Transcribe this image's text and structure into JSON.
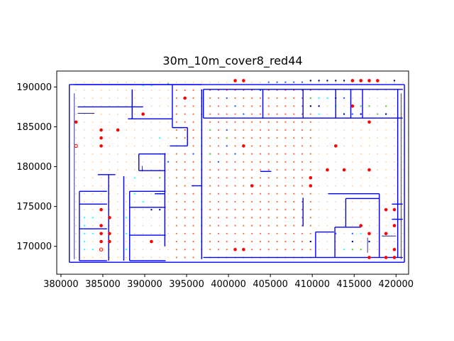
{
  "chart_data": {
    "type": "scatter",
    "title": "30m_10m_cover8_red44",
    "xlabel": "",
    "ylabel": "",
    "xlim": [
      379500,
      421500
    ],
    "ylim": [
      166500,
      192000
    ],
    "grid": false,
    "legend": "none",
    "x_ticks": [
      380000,
      385000,
      390000,
      395000,
      400000,
      405000,
      410000,
      415000,
      420000
    ],
    "y_ticks": [
      170000,
      175000,
      180000,
      185000,
      190000
    ],
    "x_tick_labels": [
      "380000",
      "385000",
      "390000",
      "395000",
      "400000",
      "405000",
      "410000",
      "415000",
      "420000"
    ],
    "y_tick_labels": [
      "170000",
      "175000",
      "180000",
      "185000",
      "190000"
    ],
    "colors": {
      "walls": "#0000ff",
      "outline": "#000080",
      "red": "#ff0000",
      "orange": "#ff6a3c",
      "peach": "#ffcc99",
      "cyan": "#33ffff",
      "blue": "#3366ff",
      "green": "#66cc33",
      "navy": "#000080"
    },
    "red_points": [
      [
        381800,
        185600
      ],
      [
        384800,
        184600
      ],
      [
        386800,
        184600
      ],
      [
        384800,
        183600
      ],
      [
        384800,
        182600
      ],
      [
        389800,
        186600
      ],
      [
        394800,
        188600
      ],
      [
        400800,
        190800
      ],
      [
        401800,
        190800
      ],
      [
        401800,
        182600
      ],
      [
        402800,
        177600
      ],
      [
        409800,
        178600
      ],
      [
        409800,
        177600
      ],
      [
        411800,
        179600
      ],
      [
        412800,
        182600
      ],
      [
        413800,
        179600
      ],
      [
        414800,
        190800
      ],
      [
        415800,
        190800
      ],
      [
        416800,
        190800
      ],
      [
        417800,
        190800
      ],
      [
        416800,
        179600
      ],
      [
        414800,
        187600
      ],
      [
        416800,
        185600
      ],
      [
        415800,
        172600
      ],
      [
        416800,
        171600
      ],
      [
        418800,
        174600
      ],
      [
        419800,
        174600
      ],
      [
        419800,
        172600
      ],
      [
        418800,
        171600
      ],
      [
        419800,
        169600
      ],
      [
        418800,
        168600
      ],
      [
        419800,
        168600
      ],
      [
        416800,
        168600
      ],
      [
        384800,
        174600
      ],
      [
        385800,
        173600
      ],
      [
        384800,
        172600
      ],
      [
        384800,
        171600
      ],
      [
        385800,
        171600
      ],
      [
        384800,
        170600
      ],
      [
        385800,
        170600
      ],
      [
        390800,
        170600
      ],
      [
        400800,
        169600
      ],
      [
        401800,
        169600
      ]
    ],
    "hollow_points": [
      [
        381800,
        182600
      ],
      [
        384800,
        169600
      ]
    ],
    "navy_points": [
      [
        409800,
        190800
      ],
      [
        410800,
        190800
      ],
      [
        411800,
        190800
      ],
      [
        412800,
        190800
      ],
      [
        413800,
        190800
      ],
      [
        419800,
        190800
      ],
      [
        409800,
        187600
      ],
      [
        410800,
        187600
      ],
      [
        412800,
        188600
      ],
      [
        413800,
        186600
      ],
      [
        415800,
        186600
      ],
      [
        418800,
        186600
      ],
      [
        390800,
        174600
      ],
      [
        391800,
        174600
      ],
      [
        409800,
        170600
      ],
      [
        414800,
        170600
      ],
      [
        416800,
        170600
      ]
    ],
    "cyan_points": [
      [
        389800,
        190200
      ],
      [
        390800,
        190200
      ],
      [
        410800,
        188600
      ],
      [
        411800,
        188600
      ],
      [
        412800,
        187600
      ],
      [
        410800,
        186600
      ],
      [
        391800,
        183600
      ],
      [
        391800,
        181600
      ],
      [
        388800,
        178600
      ],
      [
        388800,
        176600
      ],
      [
        389800,
        175600
      ],
      [
        391800,
        176600
      ],
      [
        382800,
        173600
      ],
      [
        382800,
        172600
      ],
      [
        382800,
        171600
      ],
      [
        382800,
        170600
      ],
      [
        382800,
        169600
      ],
      [
        383800,
        173600
      ],
      [
        383800,
        171600
      ],
      [
        383800,
        169600
      ],
      [
        387800,
        173600
      ],
      [
        387800,
        171600
      ],
      [
        387800,
        169600
      ],
      [
        413800,
        169600
      ],
      [
        415800,
        171600
      ]
    ],
    "blue_points": [
      [
        399800,
        188600
      ],
      [
        400800,
        187600
      ],
      [
        403800,
        189600
      ],
      [
        404800,
        190600
      ],
      [
        405800,
        190600
      ],
      [
        406800,
        190600
      ],
      [
        407800,
        190600
      ],
      [
        408800,
        190600
      ],
      [
        401800,
        186600
      ],
      [
        399800,
        184600
      ],
      [
        399800,
        182600
      ],
      [
        400800,
        181600
      ],
      [
        398800,
        180600
      ],
      [
        392800,
        180600
      ],
      [
        395800,
        181600
      ],
      [
        413800,
        188600
      ],
      [
        414800,
        186600
      ],
      [
        414800,
        171600
      ],
      [
        412800,
        171600
      ]
    ],
    "green_points": [
      [
        392800,
        190400
      ],
      [
        391800,
        178600
      ],
      [
        397800,
        181600
      ],
      [
        397800,
        184600
      ],
      [
        399800,
        183600
      ],
      [
        409800,
        188600
      ],
      [
        415800,
        187600
      ],
      [
        416800,
        187600
      ],
      [
        417800,
        186600
      ],
      [
        418800,
        187600
      ],
      [
        414800,
        169600
      ],
      [
        415800,
        169600
      ]
    ],
    "orange_grid": {
      "x_start": 393800,
      "x_end": 409800,
      "x_step": 1000,
      "y_start": 168600,
      "y_end": 189600,
      "y_step": 1000
    },
    "peach_grid": {
      "x_start": 381800,
      "x_end": 420800,
      "x_step": 1000,
      "y_start": 168600,
      "y_end": 190600,
      "y_step": 1000
    }
  }
}
